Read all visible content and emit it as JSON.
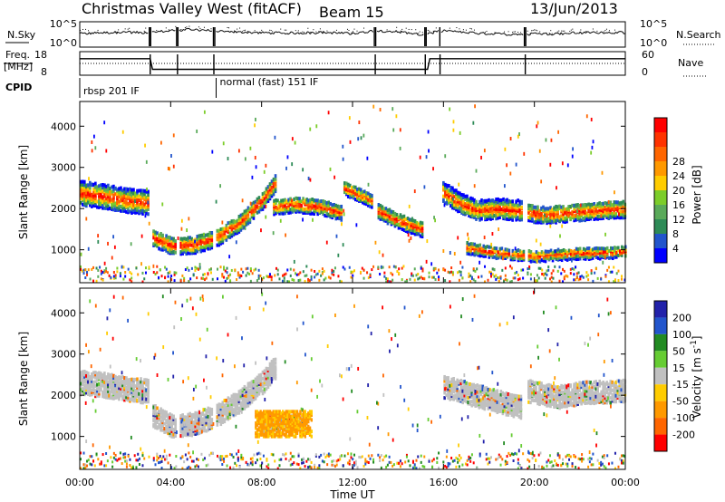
{
  "header": {
    "station": "Christmas Valley West (fitACF)",
    "beam": "Beam 15",
    "date": "13/Jun/2013"
  },
  "side_labels": {
    "nsky": "N.Sky",
    "nsearch": "N.Search",
    "freq_line1": "Freq.",
    "freq_line2": "[MHz]",
    "nave": "Nave",
    "cpid": "CPID"
  },
  "cpid_modes": [
    {
      "label": "rbsp 201 IF",
      "start": 0,
      "end": 6
    },
    {
      "label": "normal (fast) 151 IF",
      "start": 6,
      "end": 24
    }
  ],
  "colors": {
    "power": [
      "#0000ff",
      "#2255cc",
      "#2e8b57",
      "#5aaa5a",
      "#7ccd2a",
      "#ffcc00",
      "#ff9900",
      "#ff6600",
      "#ff3300",
      "#ff0000"
    ],
    "velocity": [
      "#2222aa",
      "#2255cc",
      "#228b22",
      "#66cc33",
      "#c0c0c0",
      "#ffcc00",
      "#ff9900",
      "#ff6600",
      "#ff0000"
    ],
    "ground": "#c0c0c0"
  },
  "chart_data": [
    {
      "type": "line",
      "name": "nsky-nsearch",
      "ylabel": "N.Sky",
      "y2label": "N.Search",
      "yticks": [
        "10^5",
        "10^0"
      ],
      "y2ticks": [
        "10^5",
        "10^0"
      ],
      "x": [
        0,
        1,
        2,
        3,
        4,
        5,
        6,
        7,
        8,
        9,
        10,
        11,
        12,
        13,
        14,
        15,
        16,
        17,
        18,
        19,
        20,
        21,
        22,
        23,
        24
      ],
      "values": [
        0.55,
        0.6,
        0.62,
        0.6,
        0.7,
        0.75,
        0.68,
        0.62,
        0.6,
        0.58,
        0.6,
        0.6,
        0.55,
        0.7,
        0.65,
        0.5,
        0.7,
        0.6,
        0.55,
        0.52,
        0.55,
        0.55,
        0.6,
        0.62,
        0.6
      ],
      "gaps": [
        3.1,
        4.3,
        5.9,
        13.0,
        15.2,
        15.85,
        19.6
      ]
    },
    {
      "type": "line",
      "name": "freq-nave",
      "ylabel": "Freq. [MHz]",
      "y2label": "Nave",
      "yticks": [
        8,
        18
      ],
      "y2ticks": [
        0,
        60
      ],
      "ylim": [
        8,
        18
      ],
      "y2lim": [
        0,
        60
      ],
      "freq": [
        [
          0,
          15
        ],
        [
          3.1,
          15
        ],
        [
          3.2,
          10.5
        ],
        [
          15.3,
          10.5
        ],
        [
          15.4,
          15
        ],
        [
          24,
          15
        ]
      ],
      "nave": [
        [
          0,
          30
        ],
        [
          24,
          30
        ]
      ]
    },
    {
      "type": "heatmap",
      "name": "power",
      "xlabel": "Time UT",
      "ylabel": "Slant Range [km]",
      "colorbar_label": "Power [dB]",
      "colorbar_ticks": [
        4,
        8,
        12,
        16,
        20,
        24,
        28
      ],
      "xticks": [
        "00:00",
        "04:00",
        "08:00",
        "12:00",
        "16:00",
        "20:00",
        "00:00"
      ],
      "yticks": [
        1000,
        2000,
        3000,
        4000
      ],
      "xlim": [
        0,
        24
      ],
      "ylim": [
        200,
        4600
      ],
      "bands": [
        {
          "t": [
            0.0,
            1.0,
            2.0,
            3.0
          ],
          "r": [
            2380,
            2300,
            2200,
            2150
          ],
          "w": 550
        },
        {
          "t": [
            3.2,
            4.0,
            5.0,
            6.0,
            7.0,
            8.0,
            8.6
          ],
          "r": [
            1300,
            1100,
            1120,
            1300,
            1650,
            2200,
            2650
          ],
          "w": 400
        },
        {
          "t": [
            8.5,
            9.5,
            10.5,
            11.5
          ],
          "r": [
            2050,
            2100,
            2050,
            1900
          ],
          "w": 350
        },
        {
          "t": [
            11.6,
            12.2,
            12.8
          ],
          "r": [
            2500,
            2350,
            2200
          ],
          "w": 300
        },
        {
          "t": [
            13.1,
            13.8,
            14.5,
            15.1
          ],
          "r": [
            1950,
            1750,
            1600,
            1500
          ],
          "w": 350
        },
        {
          "t": [
            15.95,
            16.8,
            17.5,
            18.2,
            19.4
          ],
          "r": [
            2400,
            2100,
            1950,
            2000,
            1950
          ],
          "w": 450
        },
        {
          "t": [
            19.7,
            20.5,
            21.5,
            22.5,
            24.0
          ],
          "r": [
            1900,
            1850,
            1900,
            1950,
            2000
          ],
          "w": 400
        },
        {
          "t": [
            17.0,
            18.0,
            19.0,
            20.0,
            21.5,
            24.0
          ],
          "r": [
            1050,
            950,
            880,
            850,
            900,
            950
          ],
          "w": 250
        }
      ]
    },
    {
      "type": "heatmap",
      "name": "velocity",
      "xlabel": "Time UT",
      "ylabel": "Slant Range [km]",
      "colorbar_label": "Velocity [m s^-1]",
      "colorbar_ticks": [
        200,
        100,
        50,
        15,
        -15,
        -50,
        -100,
        -200
      ],
      "xticks": [
        "00:00",
        "04:00",
        "08:00",
        "12:00",
        "16:00",
        "20:00",
        "00:00"
      ],
      "yticks": [
        1000,
        2000,
        3000,
        4000
      ],
      "xlim": [
        0,
        24
      ],
      "ylim": [
        200,
        4600
      ],
      "bands": [
        {
          "t": [
            0.0,
            1.0,
            2.0,
            3.0
          ],
          "r": [
            2300,
            2250,
            2150,
            2100
          ],
          "w": 550
        },
        {
          "t": [
            3.2,
            4.0,
            5.0,
            6.0,
            7.0,
            8.0,
            8.6
          ],
          "r": [
            1500,
            1250,
            1300,
            1500,
            1850,
            2300,
            2700
          ],
          "w": 500
        },
        {
          "t": [
            8.0,
            9.0,
            10.0
          ],
          "r": [
            1250,
            1400,
            1300
          ],
          "w": 400
        },
        {
          "t": [
            16.0,
            17.0,
            18.0,
            19.4
          ],
          "r": [
            2200,
            2050,
            1900,
            1700
          ],
          "w": 500
        },
        {
          "t": [
            19.7,
            21.0,
            22.0,
            24.0
          ],
          "r": [
            2100,
            1950,
            2050,
            2100
          ],
          "w": 500
        }
      ]
    }
  ]
}
